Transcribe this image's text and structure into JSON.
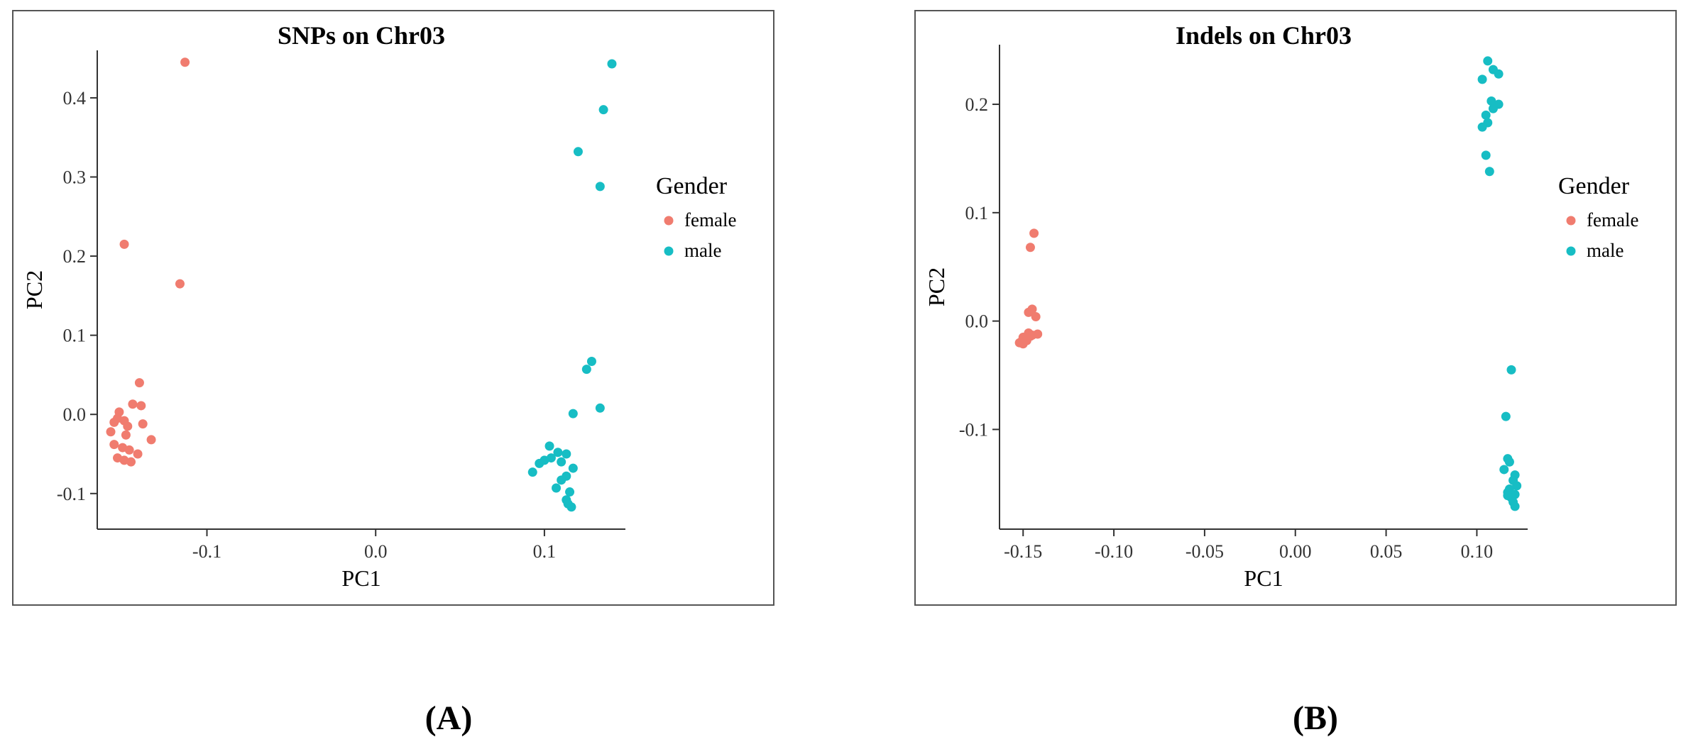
{
  "chart_data": [
    {
      "type": "scatter",
      "title": "SNPs on Chr03",
      "xlabel": "PC1",
      "ylabel": "PC2",
      "xlim": [
        -0.165,
        0.148
      ],
      "ylim": [
        -0.145,
        0.46
      ],
      "xticks": [
        -0.1,
        0.0,
        0.1
      ],
      "xtick_labels": [
        "-0.1",
        "0.0",
        "0.1"
      ],
      "yticks": [
        -0.1,
        0.0,
        0.1,
        0.2,
        0.3,
        0.4
      ],
      "ytick_labels": [
        "-0.1",
        "0.0",
        "0.1",
        "0.2",
        "0.3",
        "0.4"
      ],
      "legend": {
        "title": "Gender",
        "position": "right",
        "entries": [
          "female",
          "male"
        ]
      },
      "grid": false,
      "series": [
        {
          "name": "female",
          "color": "#F07C6F",
          "points": [
            [
              -0.113,
              0.445
            ],
            [
              -0.149,
              0.215
            ],
            [
              -0.116,
              0.165
            ],
            [
              -0.14,
              0.04
            ],
            [
              -0.144,
              0.013
            ],
            [
              -0.139,
              0.011
            ],
            [
              -0.152,
              0.003
            ],
            [
              -0.153,
              -0.005
            ],
            [
              -0.149,
              -0.008
            ],
            [
              -0.155,
              -0.01
            ],
            [
              -0.147,
              -0.015
            ],
            [
              -0.138,
              -0.012
            ],
            [
              -0.157,
              -0.022
            ],
            [
              -0.148,
              -0.026
            ],
            [
              -0.133,
              -0.032
            ],
            [
              -0.155,
              -0.038
            ],
            [
              -0.15,
              -0.042
            ],
            [
              -0.146,
              -0.045
            ],
            [
              -0.141,
              -0.05
            ],
            [
              -0.153,
              -0.055
            ],
            [
              -0.149,
              -0.058
            ],
            [
              -0.145,
              -0.06
            ]
          ]
        },
        {
          "name": "male",
          "color": "#17BDC4",
          "points": [
            [
              0.14,
              0.443
            ],
            [
              0.135,
              0.385
            ],
            [
              0.12,
              0.332
            ],
            [
              0.133,
              0.288
            ],
            [
              0.128,
              0.067
            ],
            [
              0.125,
              0.057
            ],
            [
              0.133,
              0.008
            ],
            [
              0.117,
              0.001
            ],
            [
              0.103,
              -0.04
            ],
            [
              0.108,
              -0.048
            ],
            [
              0.113,
              -0.05
            ],
            [
              0.1,
              -0.058
            ],
            [
              0.104,
              -0.055
            ],
            [
              0.11,
              -0.06
            ],
            [
              0.097,
              -0.062
            ],
            [
              0.117,
              -0.068
            ],
            [
              0.093,
              -0.073
            ],
            [
              0.113,
              -0.078
            ],
            [
              0.11,
              -0.083
            ],
            [
              0.107,
              -0.093
            ],
            [
              0.115,
              -0.098
            ],
            [
              0.113,
              -0.108
            ],
            [
              0.116,
              -0.117
            ],
            [
              0.114,
              -0.113
            ]
          ]
        }
      ]
    },
    {
      "type": "scatter",
      "title": "Indels on Chr03",
      "xlabel": "PC1",
      "ylabel": "PC2",
      "xlim": [
        -0.163,
        0.128
      ],
      "ylim": [
        -0.192,
        0.255
      ],
      "xticks": [
        -0.15,
        -0.1,
        -0.05,
        0.0,
        0.05,
        0.1
      ],
      "xtick_labels": [
        "-0.15",
        "-0.10",
        "-0.05",
        "0.00",
        "0.05",
        "0.10"
      ],
      "yticks": [
        -0.1,
        0.0,
        0.1,
        0.2
      ],
      "ytick_labels": [
        "-0.1",
        "0.0",
        "0.1",
        "0.2"
      ],
      "legend": {
        "title": "Gender",
        "position": "right",
        "entries": [
          "female",
          "male"
        ]
      },
      "grid": false,
      "series": [
        {
          "name": "female",
          "color": "#F07C6F",
          "points": [
            [
              -0.144,
              0.081
            ],
            [
              -0.146,
              0.068
            ],
            [
              -0.145,
              0.011
            ],
            [
              -0.147,
              0.008
            ],
            [
              -0.143,
              0.004
            ],
            [
              -0.147,
              -0.011
            ],
            [
              -0.142,
              -0.012
            ],
            [
              -0.145,
              -0.013
            ],
            [
              -0.148,
              -0.014
            ],
            [
              -0.15,
              -0.015
            ],
            [
              -0.149,
              -0.017
            ],
            [
              -0.151,
              -0.019
            ],
            [
              -0.152,
              -0.02
            ],
            [
              -0.15,
              -0.021
            ],
            [
              -0.148,
              -0.018
            ],
            [
              -0.146,
              -0.014
            ]
          ]
        },
        {
          "name": "male",
          "color": "#17BDC4",
          "points": [
            [
              0.106,
              0.24
            ],
            [
              0.109,
              0.232
            ],
            [
              0.112,
              0.228
            ],
            [
              0.103,
              0.223
            ],
            [
              0.108,
              0.203
            ],
            [
              0.112,
              0.2
            ],
            [
              0.109,
              0.196
            ],
            [
              0.105,
              0.19
            ],
            [
              0.106,
              0.183
            ],
            [
              0.103,
              0.179
            ],
            [
              0.105,
              0.153
            ],
            [
              0.107,
              0.138
            ],
            [
              0.119,
              -0.045
            ],
            [
              0.116,
              -0.088
            ],
            [
              0.115,
              -0.137
            ],
            [
              0.118,
              -0.13
            ],
            [
              0.117,
              -0.127
            ],
            [
              0.121,
              -0.142
            ],
            [
              0.12,
              -0.147
            ],
            [
              0.122,
              -0.152
            ],
            [
              0.118,
              -0.155
            ],
            [
              0.117,
              -0.158
            ],
            [
              0.121,
              -0.16
            ],
            [
              0.119,
              -0.163
            ],
            [
              0.12,
              -0.167
            ],
            [
              0.121,
              -0.171
            ],
            [
              0.117,
              -0.161
            ]
          ]
        }
      ]
    }
  ],
  "captions": [
    "(A)",
    "(B)"
  ]
}
